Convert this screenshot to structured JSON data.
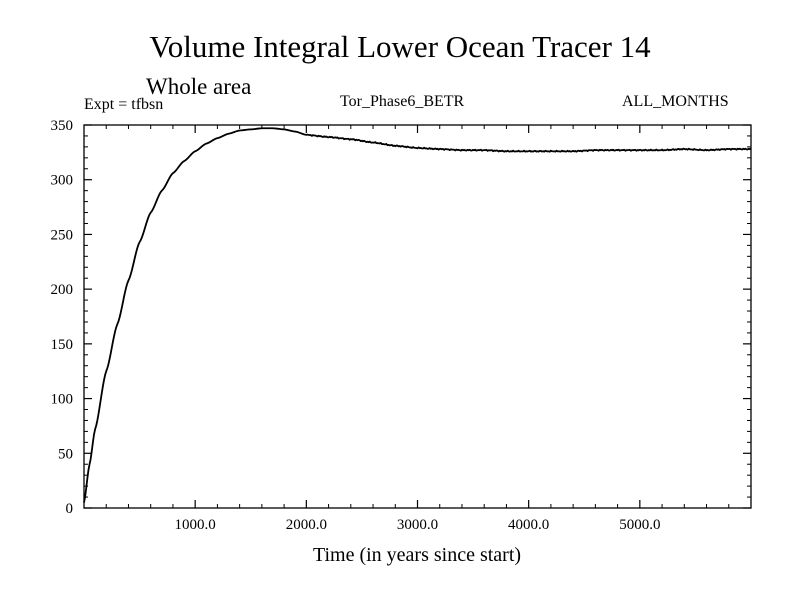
{
  "chart_data": {
    "type": "line",
    "title": "Volume Integral Lower Ocean Tracer 14",
    "subtitle": "Whole area",
    "experiment_label": "Expt = tfbsn",
    "run_label": "Tor_Phase6_BETR",
    "period_label": "ALL_MONTHS",
    "xlabel": "Time (in years since start)",
    "ylabel": "",
    "xlim": [
      0,
      6000
    ],
    "ylim": [
      0,
      350
    ],
    "x_ticks": [
      1000,
      2000,
      3000,
      4000,
      5000
    ],
    "x_tick_labels": [
      "1000.0",
      "2000.0",
      "3000.0",
      "4000.0",
      "5000.0"
    ],
    "y_ticks": [
      0,
      50,
      100,
      150,
      200,
      250,
      300,
      350
    ],
    "y_tick_labels": [
      "0",
      "50",
      "100",
      "150",
      "200",
      "250",
      "300",
      "350"
    ],
    "grid": false,
    "line_color": "#000000",
    "series": [
      {
        "name": "Lower Ocean Tracer 14",
        "x": [
          0,
          50,
          100,
          200,
          300,
          400,
          500,
          600,
          700,
          800,
          900,
          1000,
          1100,
          1200,
          1300,
          1400,
          1500,
          1600,
          1700,
          1800,
          1900,
          2000,
          2200,
          2400,
          2600,
          2800,
          3000,
          3200,
          3400,
          3600,
          3800,
          4000,
          4200,
          4400,
          4600,
          4800,
          5000,
          5200,
          5400,
          5600,
          5800,
          6000
        ],
        "values": [
          5,
          40,
          72,
          125,
          168,
          208,
          243,
          270,
          290,
          306,
          317,
          326,
          333,
          338,
          342,
          345,
          346,
          347,
          347,
          346,
          344,
          341,
          339,
          337,
          334,
          331,
          329,
          328,
          327,
          327,
          326,
          326,
          326,
          326,
          327,
          327,
          327,
          327,
          328,
          327,
          328,
          328
        ]
      }
    ]
  }
}
